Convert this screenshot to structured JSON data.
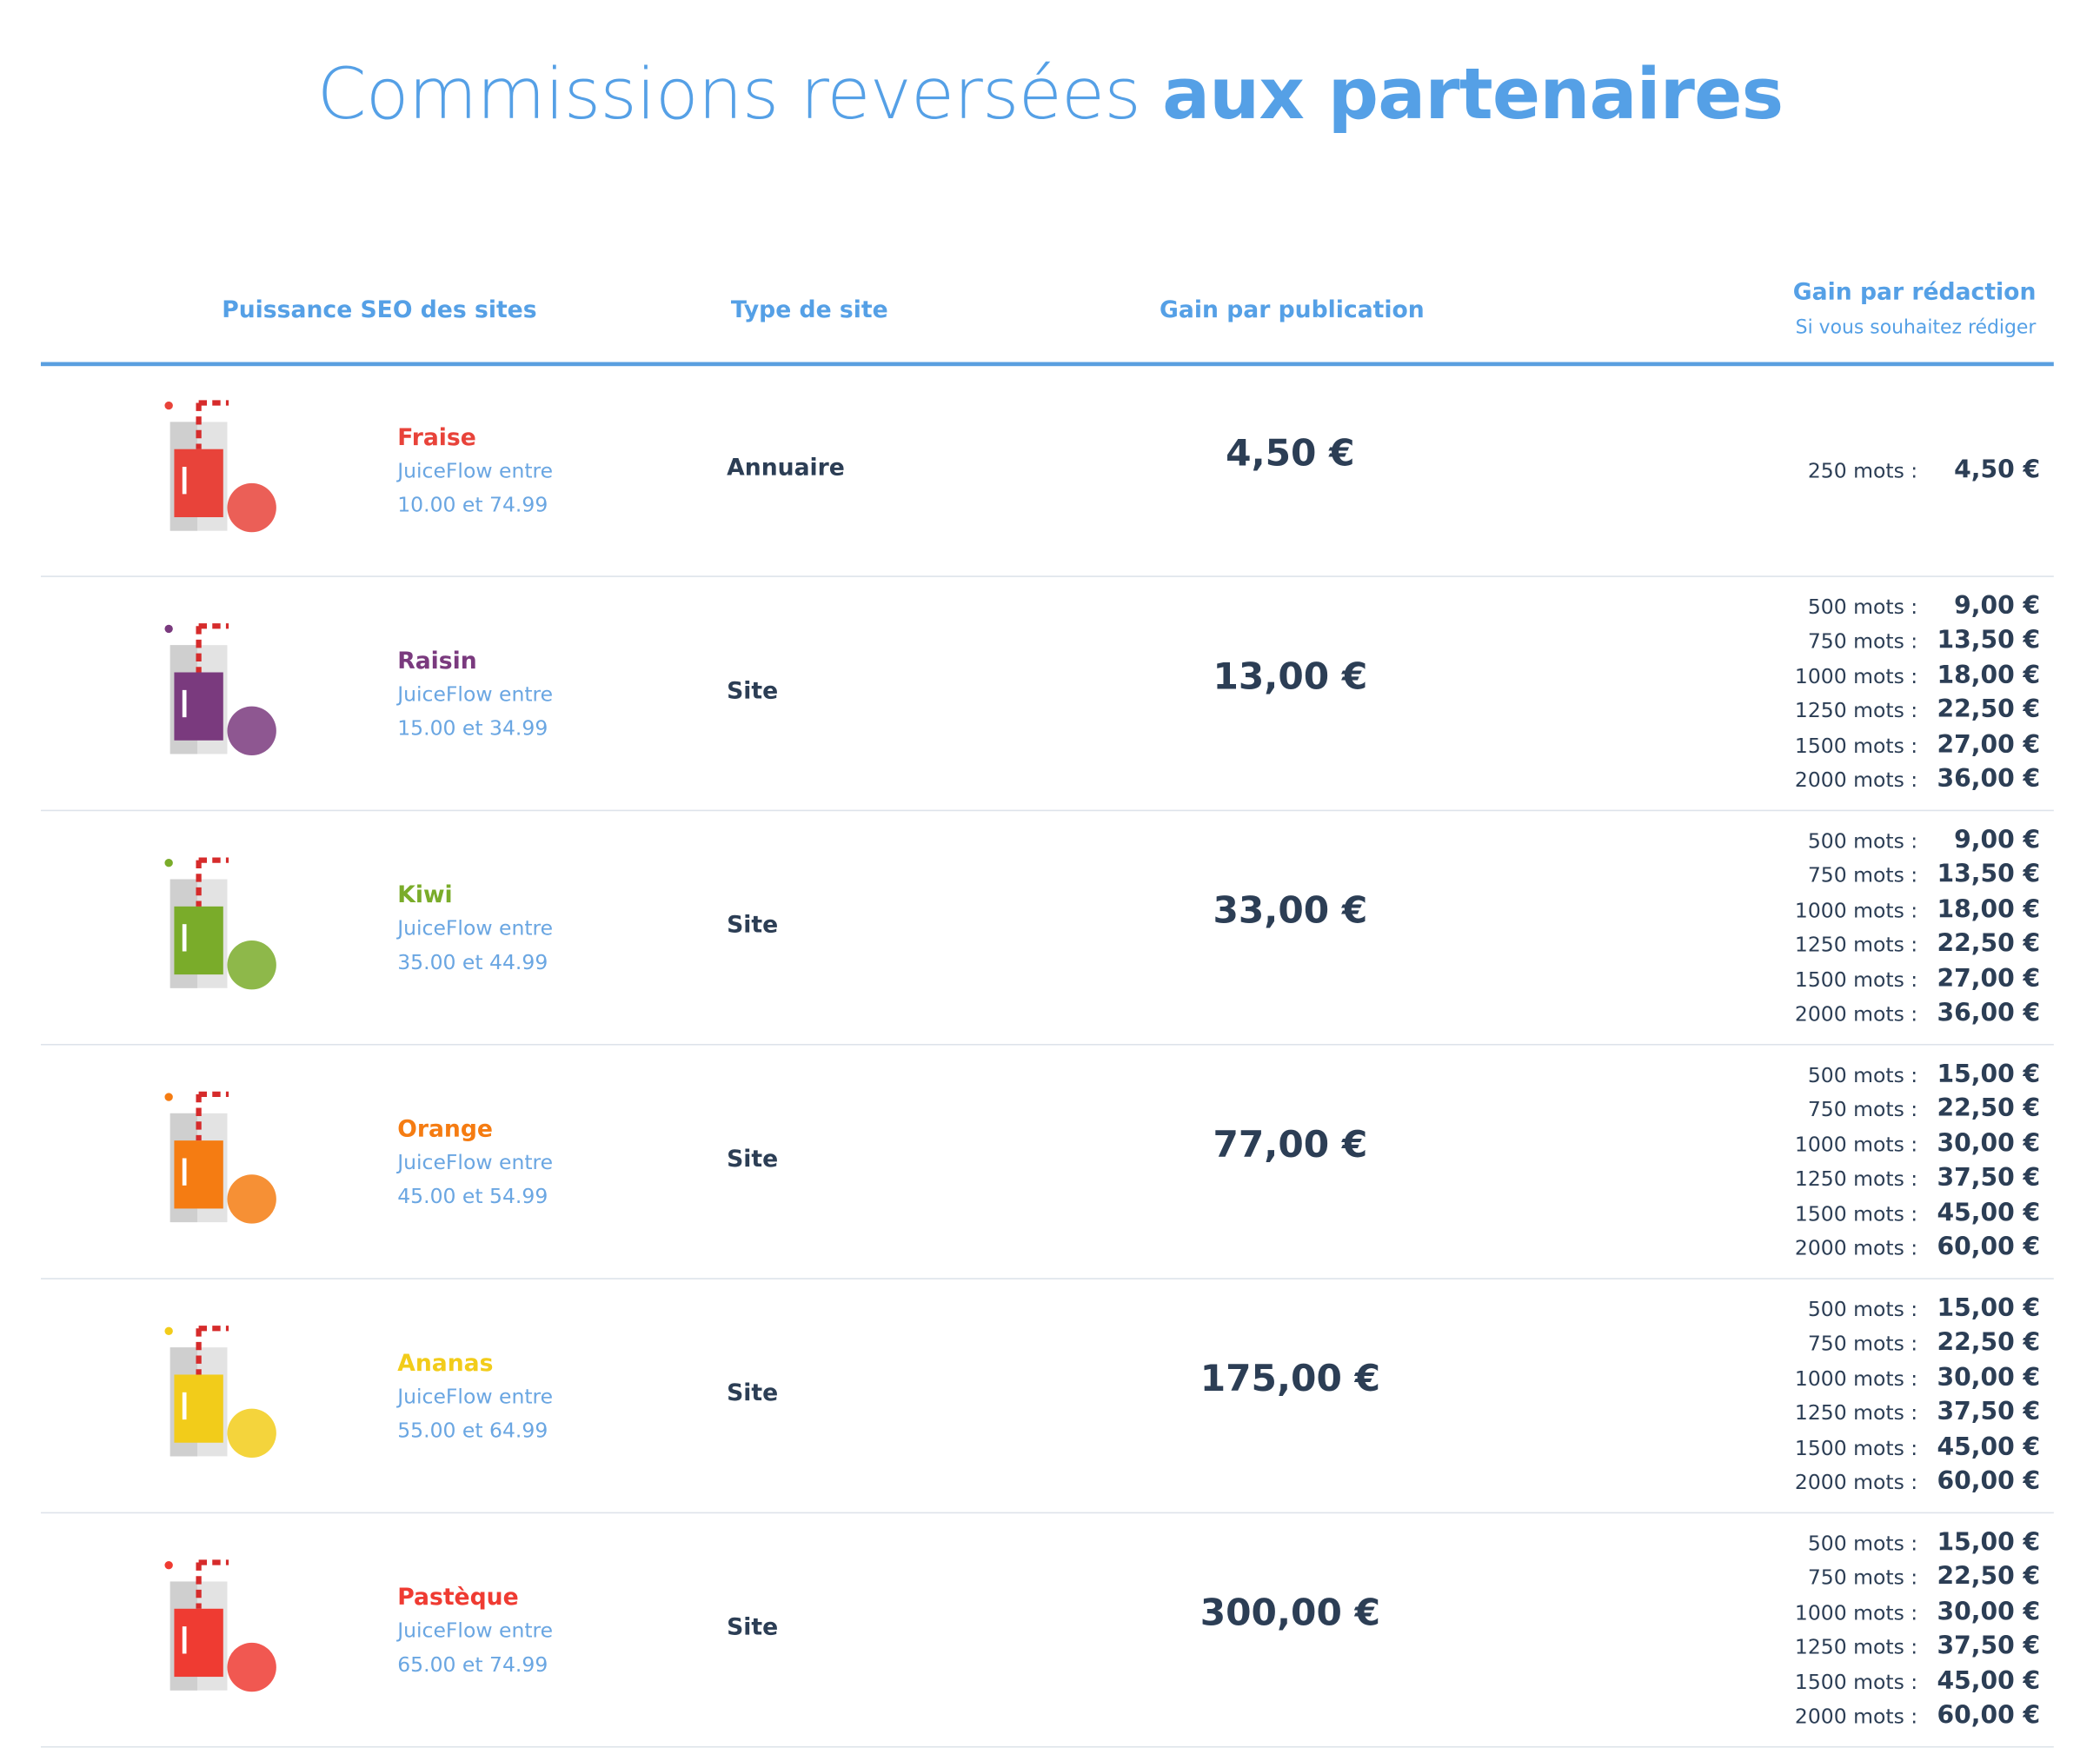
{
  "header": {
    "title_light": "Commissions reversées",
    "title_bold": "aux partenaires"
  },
  "table": {
    "headers": [
      "Puissance SEO des sites",
      "Type de site",
      "Gain par publication",
      "Gain par rédaction"
    ],
    "subheader": "Si vous souhaitez rédiger",
    "rows": [
      {
        "name": "Fraise",
        "color": "#e8433a",
        "range": "JuiceFlow entre 10.00 et 74.99",
        "type": "Annuaire",
        "gain": "4,50 €",
        "redaction": [
          {
            "words": "250 mots :",
            "price": "4,50 €"
          }
        ]
      },
      {
        "name": "Raisin",
        "color": "#7a3a7e",
        "range": "JuiceFlow entre 15.00 et 34.99",
        "type": "Site",
        "gain": "13,00 €",
        "redaction": [
          {
            "words": "500 mots :",
            "price": "9,00 €"
          },
          {
            "words": "750 mots :",
            "price": "13,50 €"
          },
          {
            "words": "1000 mots :",
            "price": "18,00 €"
          },
          {
            "words": "1250 mots :",
            "price": "22,50 €"
          },
          {
            "words": "1500 mots :",
            "price": "27,00 €"
          },
          {
            "words": "2000 mots :",
            "price": "36,00 €"
          }
        ]
      },
      {
        "name": "Kiwi",
        "color": "#7aac2a",
        "range": "JuiceFlow entre 35.00 et 44.99",
        "type": "Site",
        "gain": "33,00 €",
        "redaction": [
          {
            "words": "500 mots :",
            "price": "9,00 €"
          },
          {
            "words": "750 mots :",
            "price": "13,50 €"
          },
          {
            "words": "1000 mots :",
            "price": "18,00 €"
          },
          {
            "words": "1250 mots :",
            "price": "22,50 €"
          },
          {
            "words": "1500 mots :",
            "price": "27,00 €"
          },
          {
            "words": "2000 mots :",
            "price": "36,00 €"
          }
        ]
      },
      {
        "name": "Orange",
        "color": "#f57c12",
        "range": "JuiceFlow entre 45.00 et 54.99",
        "type": "Site",
        "gain": "77,00 €",
        "redaction": [
          {
            "words": "500 mots :",
            "price": "15,00 €"
          },
          {
            "words": "750 mots :",
            "price": "22,50 €"
          },
          {
            "words": "1000 mots :",
            "price": "30,00 €"
          },
          {
            "words": "1250 mots :",
            "price": "37,50 €"
          },
          {
            "words": "1500 mots :",
            "price": "45,00 €"
          },
          {
            "words": "2000 mots :",
            "price": "60,00 €"
          }
        ]
      },
      {
        "name": "Ananas",
        "color": "#f2cc1a",
        "range": "JuiceFlow entre 55.00 et 64.99",
        "type": "Site",
        "gain": "175,00 €",
        "redaction": [
          {
            "words": "500 mots :",
            "price": "15,00 €"
          },
          {
            "words": "750 mots :",
            "price": "22,50 €"
          },
          {
            "words": "1000 mots :",
            "price": "30,00 €"
          },
          {
            "words": "1250 mots :",
            "price": "37,50 €"
          },
          {
            "words": "1500 mots :",
            "price": "45,00 €"
          },
          {
            "words": "2000 mots :",
            "price": "60,00 €"
          }
        ]
      },
      {
        "name": "Pastèque",
        "color": "#ef3b32",
        "range": "JuiceFlow entre 65.00 et 74.99",
        "type": "Site",
        "gain": "300,00 €",
        "redaction": [
          {
            "words": "500 mots :",
            "price": "15,00 €"
          },
          {
            "words": "750 mots :",
            "price": "22,50 €"
          },
          {
            "words": "1000 mots :",
            "price": "30,00 €"
          },
          {
            "words": "1250 mots :",
            "price": "37,50 €"
          },
          {
            "words": "1500 mots :",
            "price": "45,00 €"
          },
          {
            "words": "2000 mots :",
            "price": "60,00 €"
          }
        ]
      }
    ]
  }
}
